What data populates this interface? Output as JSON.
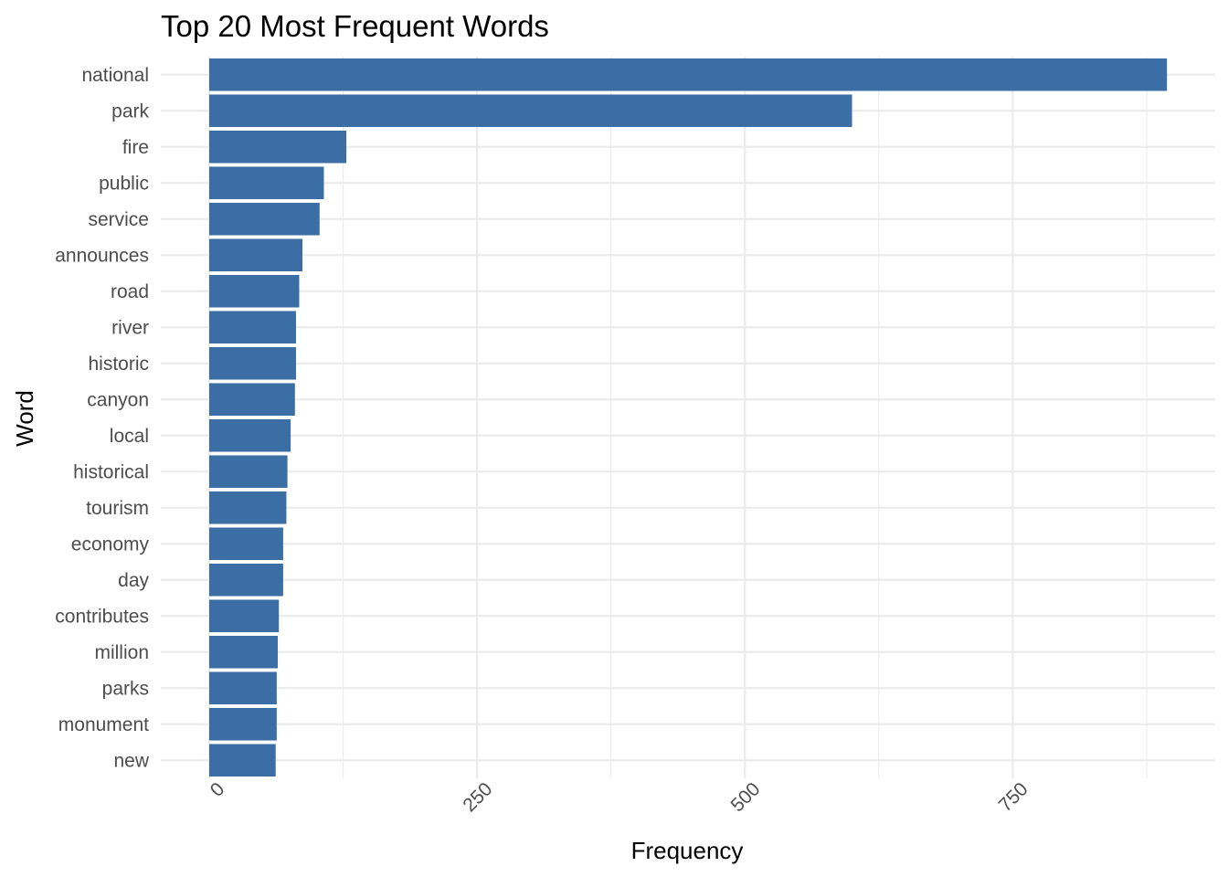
{
  "chart_data": {
    "type": "bar",
    "orientation": "horizontal",
    "title": "Top 20 Most Frequent Words",
    "xlabel": "Frequency",
    "ylabel": "Word",
    "categories": [
      "national",
      "park",
      "fire",
      "public",
      "service",
      "announces",
      "road",
      "river",
      "historic",
      "canyon",
      "local",
      "historical",
      "tourism",
      "economy",
      "day",
      "contributes",
      "million",
      "parks",
      "monument",
      "new"
    ],
    "values": [
      894,
      600,
      128,
      107,
      103,
      87,
      84,
      81,
      81,
      80,
      76,
      73,
      72,
      69,
      69,
      65,
      64,
      63,
      63,
      62
    ],
    "xlim": [
      0,
      940
    ],
    "xticks": [
      0,
      250,
      500,
      750
    ],
    "xtick_labels": [
      "0",
      "250",
      "500",
      "750"
    ],
    "xtick_rotation": 45,
    "grid": true,
    "bar_color": "#3a6ea5"
  }
}
